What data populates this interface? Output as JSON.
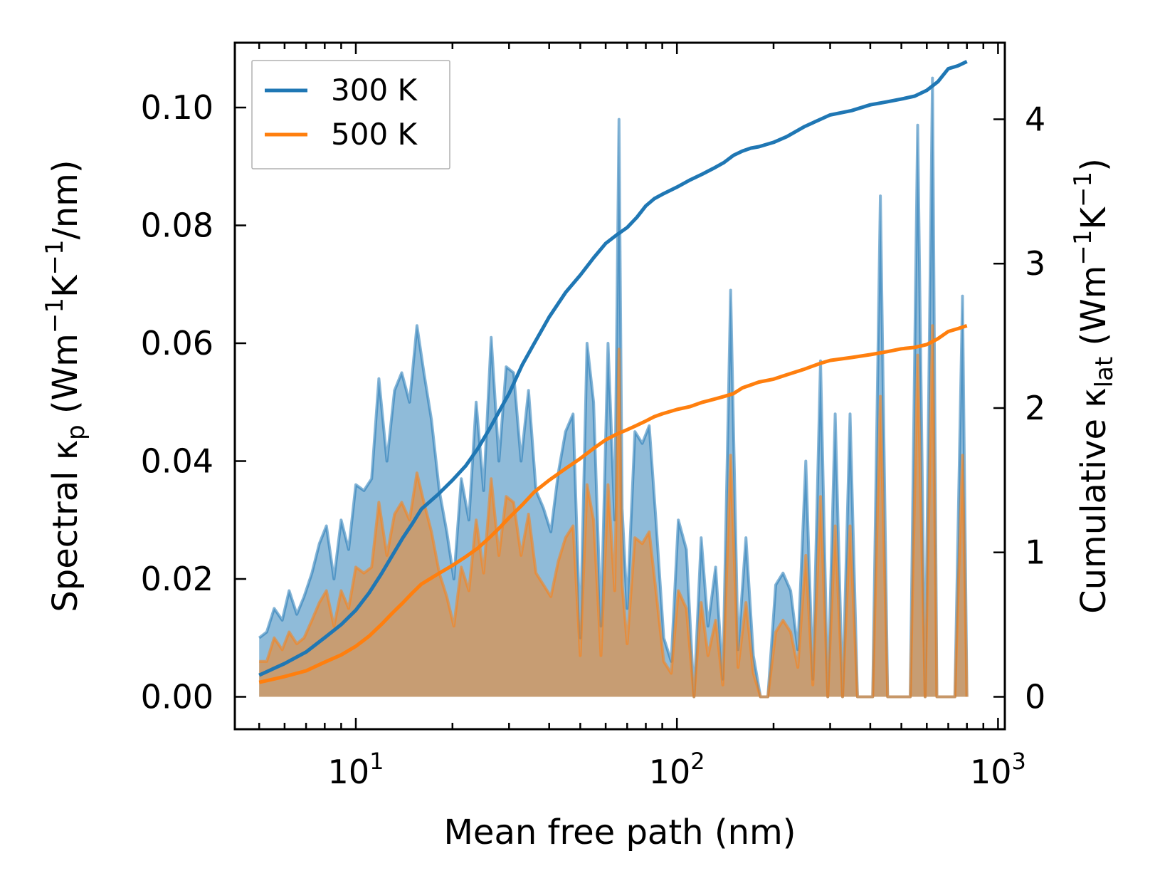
{
  "chart_data": {
    "type": "area",
    "title": "",
    "xlabel": "Mean free path (nm)",
    "xscale": "log",
    "xlim": [
      4.2,
      1050
    ],
    "x_ticks": [
      {
        "value": 10,
        "base": "10",
        "exp": "1"
      },
      {
        "value": 100,
        "base": "10",
        "exp": "2"
      },
      {
        "value": 1000,
        "base": "10",
        "exp": "3"
      }
    ],
    "ylabel_left": {
      "prefix": "Spectral κ",
      "sub": "p",
      "unit_a": " (Wm",
      "sup_a": "−1",
      "unit_b": "K",
      "sup_b": "−1",
      "unit_c": "/nm)"
    },
    "ylim_left": [
      -0.0055,
      0.111
    ],
    "yticks_left": [
      "0.00",
      "0.02",
      "0.04",
      "0.06",
      "0.08",
      "0.10"
    ],
    "ylabel_right": {
      "prefix": "Cumulative κ",
      "sub": "lat",
      "unit_a": " (Wm",
      "sup_a": "−1",
      "unit_b": "K",
      "sup_b": "−1",
      "unit_c": ")"
    },
    "ylim_right": [
      -0.2245,
      4.53
    ],
    "yticks_right": [
      "0",
      "1",
      "2",
      "3",
      "4"
    ],
    "legend": [
      {
        "label": "300 K",
        "color": "#1f77b4"
      },
      {
        "label": "500 K",
        "color": "#ff7f0e"
      }
    ],
    "legend_position": "top-left",
    "series": [
      {
        "name": "300 K",
        "kind": "spectral",
        "axis": "left",
        "color": "#1f77b4",
        "fill_color": "#1f77b4",
        "fill_opacity": 0.5,
        "x": [
          5,
          5.28,
          5.57,
          5.9,
          6.2,
          6.55,
          6.9,
          7.3,
          7.7,
          8.1,
          8.55,
          9.0,
          9.5,
          10.0,
          10.6,
          11.2,
          11.8,
          12.5,
          13.2,
          13.9,
          14.7,
          15.5,
          16.3,
          17.2,
          18.2,
          19.2,
          20.2,
          21.3,
          22.5,
          23.7,
          25.0,
          26.4,
          27.9,
          29.4,
          31.0,
          32.7,
          34.5,
          36.4,
          38.4,
          40.5,
          42.7,
          45.0,
          47.5,
          50.0,
          52.5,
          55.0,
          58.0,
          61.0,
          64.0,
          66.0,
          67.5,
          70.0,
          74.0,
          78.0,
          82.0,
          86.0,
          91.0,
          96.0,
          101.0,
          107.0,
          113.0,
          119.0,
          125.0,
          132.0,
          139.0,
          147.0,
          155.0,
          164.0,
          173.0,
          182.0,
          192.0,
          203.0,
          214.0,
          226.0,
          238.0,
          252.0,
          265.0,
          280.0,
          295.0,
          311.0,
          328.0,
          346.0,
          365.0,
          386.0,
          407.0,
          430.0,
          453.0,
          478.0,
          505.0,
          533.0,
          562.0,
          593.0,
          625.0,
          645.0,
          660.0,
          696.0,
          734.0,
          775.0,
          800.0
        ],
        "values": [
          0.01,
          0.011,
          0.015,
          0.013,
          0.018,
          0.014,
          0.017,
          0.021,
          0.026,
          0.029,
          0.02,
          0.03,
          0.025,
          0.036,
          0.035,
          0.037,
          0.054,
          0.04,
          0.052,
          0.055,
          0.05,
          0.063,
          0.055,
          0.047,
          0.035,
          0.028,
          0.02,
          0.037,
          0.03,
          0.05,
          0.035,
          0.061,
          0.04,
          0.056,
          0.055,
          0.04,
          0.052,
          0.035,
          0.032,
          0.028,
          0.038,
          0.045,
          0.048,
          0.01,
          0.06,
          0.05,
          0.012,
          0.06,
          0.03,
          0.098,
          0.032,
          0.015,
          0.045,
          0.043,
          0.046,
          0.03,
          0.01,
          0.006,
          0.03,
          0.025,
          0.0,
          0.027,
          0.012,
          0.022,
          0.003,
          0.069,
          0.008,
          0.027,
          0.007,
          0.0,
          0.0,
          0.019,
          0.021,
          0.018,
          0.008,
          0.04,
          0.003,
          0.057,
          0.0,
          0.048,
          0.0,
          0.048,
          0.0,
          0.0,
          0.0,
          0.085,
          0.0,
          0.0,
          0.0,
          0.0,
          0.097,
          0.0,
          0.105,
          0.0,
          0.0,
          0.0,
          0.0,
          0.068,
          0.0
        ]
      },
      {
        "name": "500 K",
        "kind": "spectral",
        "axis": "left",
        "color": "#ff7f0e",
        "fill_color": "#ff7f0e",
        "fill_opacity": 0.5,
        "x": [
          5,
          5.28,
          5.57,
          5.9,
          6.2,
          6.55,
          6.9,
          7.3,
          7.7,
          8.1,
          8.55,
          9.0,
          9.5,
          10.0,
          10.6,
          11.2,
          11.8,
          12.5,
          13.2,
          13.9,
          14.7,
          15.5,
          16.3,
          17.2,
          18.2,
          19.2,
          20.2,
          21.3,
          22.5,
          23.7,
          25.0,
          26.4,
          27.9,
          29.4,
          31.0,
          32.7,
          34.5,
          36.4,
          38.4,
          40.5,
          42.7,
          45.0,
          47.5,
          50.0,
          52.5,
          55.0,
          58.0,
          61.0,
          64.0,
          66.0,
          67.5,
          70.0,
          74.0,
          78.0,
          82.0,
          86.0,
          91.0,
          96.0,
          101.0,
          107.0,
          113.0,
          119.0,
          125.0,
          132.0,
          139.0,
          147.0,
          155.0,
          164.0,
          173.0,
          182.0,
          192.0,
          203.0,
          214.0,
          226.0,
          238.0,
          252.0,
          265.0,
          280.0,
          295.0,
          311.0,
          328.0,
          346.0,
          365.0,
          386.0,
          407.0,
          430.0,
          453.0,
          478.0,
          505.0,
          533.0,
          562.0,
          593.0,
          625.0,
          645.0,
          660.0,
          696.0,
          734.0,
          775.0,
          800.0
        ],
        "values": [
          0.006,
          0.006,
          0.01,
          0.008,
          0.011,
          0.009,
          0.01,
          0.013,
          0.016,
          0.018,
          0.012,
          0.018,
          0.015,
          0.022,
          0.021,
          0.022,
          0.033,
          0.024,
          0.031,
          0.033,
          0.03,
          0.038,
          0.033,
          0.028,
          0.021,
          0.017,
          0.012,
          0.022,
          0.018,
          0.03,
          0.021,
          0.037,
          0.024,
          0.034,
          0.033,
          0.024,
          0.031,
          0.021,
          0.019,
          0.017,
          0.023,
          0.027,
          0.029,
          0.007,
          0.036,
          0.03,
          0.007,
          0.036,
          0.018,
          0.059,
          0.019,
          0.009,
          0.027,
          0.026,
          0.028,
          0.018,
          0.006,
          0.004,
          0.018,
          0.015,
          0.0,
          0.016,
          0.007,
          0.013,
          0.002,
          0.041,
          0.005,
          0.016,
          0.004,
          0.0,
          0.0,
          0.011,
          0.013,
          0.011,
          0.005,
          0.024,
          0.002,
          0.034,
          0.0,
          0.029,
          0.0,
          0.029,
          0.0,
          0.0,
          0.0,
          0.051,
          0.0,
          0.0,
          0.0,
          0.0,
          0.058,
          0.0,
          0.063,
          0.0,
          0.0,
          0.0,
          0.0,
          0.041,
          0.0
        ]
      },
      {
        "name": "300 K",
        "kind": "cumulative",
        "axis": "right",
        "color": "#1f77b4",
        "x": [
          5,
          6,
          7,
          8,
          9,
          10,
          11,
          12,
          13,
          14,
          15,
          16,
          18,
          20,
          22,
          24,
          26,
          28,
          30,
          33,
          36,
          40,
          45,
          50,
          55,
          60,
          65,
          70,
          75,
          80,
          85,
          90,
          100,
          110,
          120,
          130,
          140,
          150,
          160,
          170,
          180,
          200,
          220,
          250,
          280,
          300,
          350,
          400,
          450,
          500,
          550,
          600,
          650,
          700,
          750,
          800
        ],
        "values": [
          0.15,
          0.23,
          0.31,
          0.41,
          0.5,
          0.6,
          0.72,
          0.85,
          0.98,
          1.1,
          1.2,
          1.3,
          1.4,
          1.5,
          1.6,
          1.72,
          1.85,
          1.98,
          2.1,
          2.3,
          2.45,
          2.63,
          2.8,
          2.92,
          3.04,
          3.14,
          3.2,
          3.25,
          3.32,
          3.4,
          3.45,
          3.48,
          3.53,
          3.58,
          3.62,
          3.66,
          3.7,
          3.75,
          3.78,
          3.8,
          3.81,
          3.84,
          3.88,
          3.95,
          4.0,
          4.03,
          4.06,
          4.1,
          4.12,
          4.14,
          4.16,
          4.2,
          4.26,
          4.35,
          4.37,
          4.4
        ]
      },
      {
        "name": "500 K",
        "kind": "cumulative",
        "axis": "right",
        "color": "#ff7f0e",
        "x": [
          5,
          6,
          7,
          8,
          9,
          10,
          11,
          12,
          13,
          14,
          15,
          16,
          18,
          20,
          22,
          24,
          26,
          28,
          30,
          33,
          36,
          40,
          45,
          50,
          55,
          60,
          65,
          70,
          75,
          80,
          85,
          90,
          100,
          110,
          120,
          130,
          140,
          150,
          160,
          170,
          180,
          200,
          220,
          250,
          280,
          300,
          350,
          400,
          450,
          500,
          550,
          600,
          650,
          700,
          750,
          800
        ],
        "values": [
          0.1,
          0.14,
          0.18,
          0.24,
          0.29,
          0.35,
          0.42,
          0.5,
          0.58,
          0.65,
          0.72,
          0.78,
          0.85,
          0.91,
          0.97,
          1.03,
          1.1,
          1.17,
          1.24,
          1.33,
          1.42,
          1.5,
          1.58,
          1.65,
          1.72,
          1.78,
          1.82,
          1.85,
          1.88,
          1.91,
          1.94,
          1.96,
          1.99,
          2.01,
          2.04,
          2.06,
          2.08,
          2.1,
          2.14,
          2.16,
          2.18,
          2.2,
          2.23,
          2.27,
          2.31,
          2.33,
          2.35,
          2.37,
          2.39,
          2.41,
          2.42,
          2.44,
          2.48,
          2.53,
          2.55,
          2.57
        ]
      }
    ]
  }
}
